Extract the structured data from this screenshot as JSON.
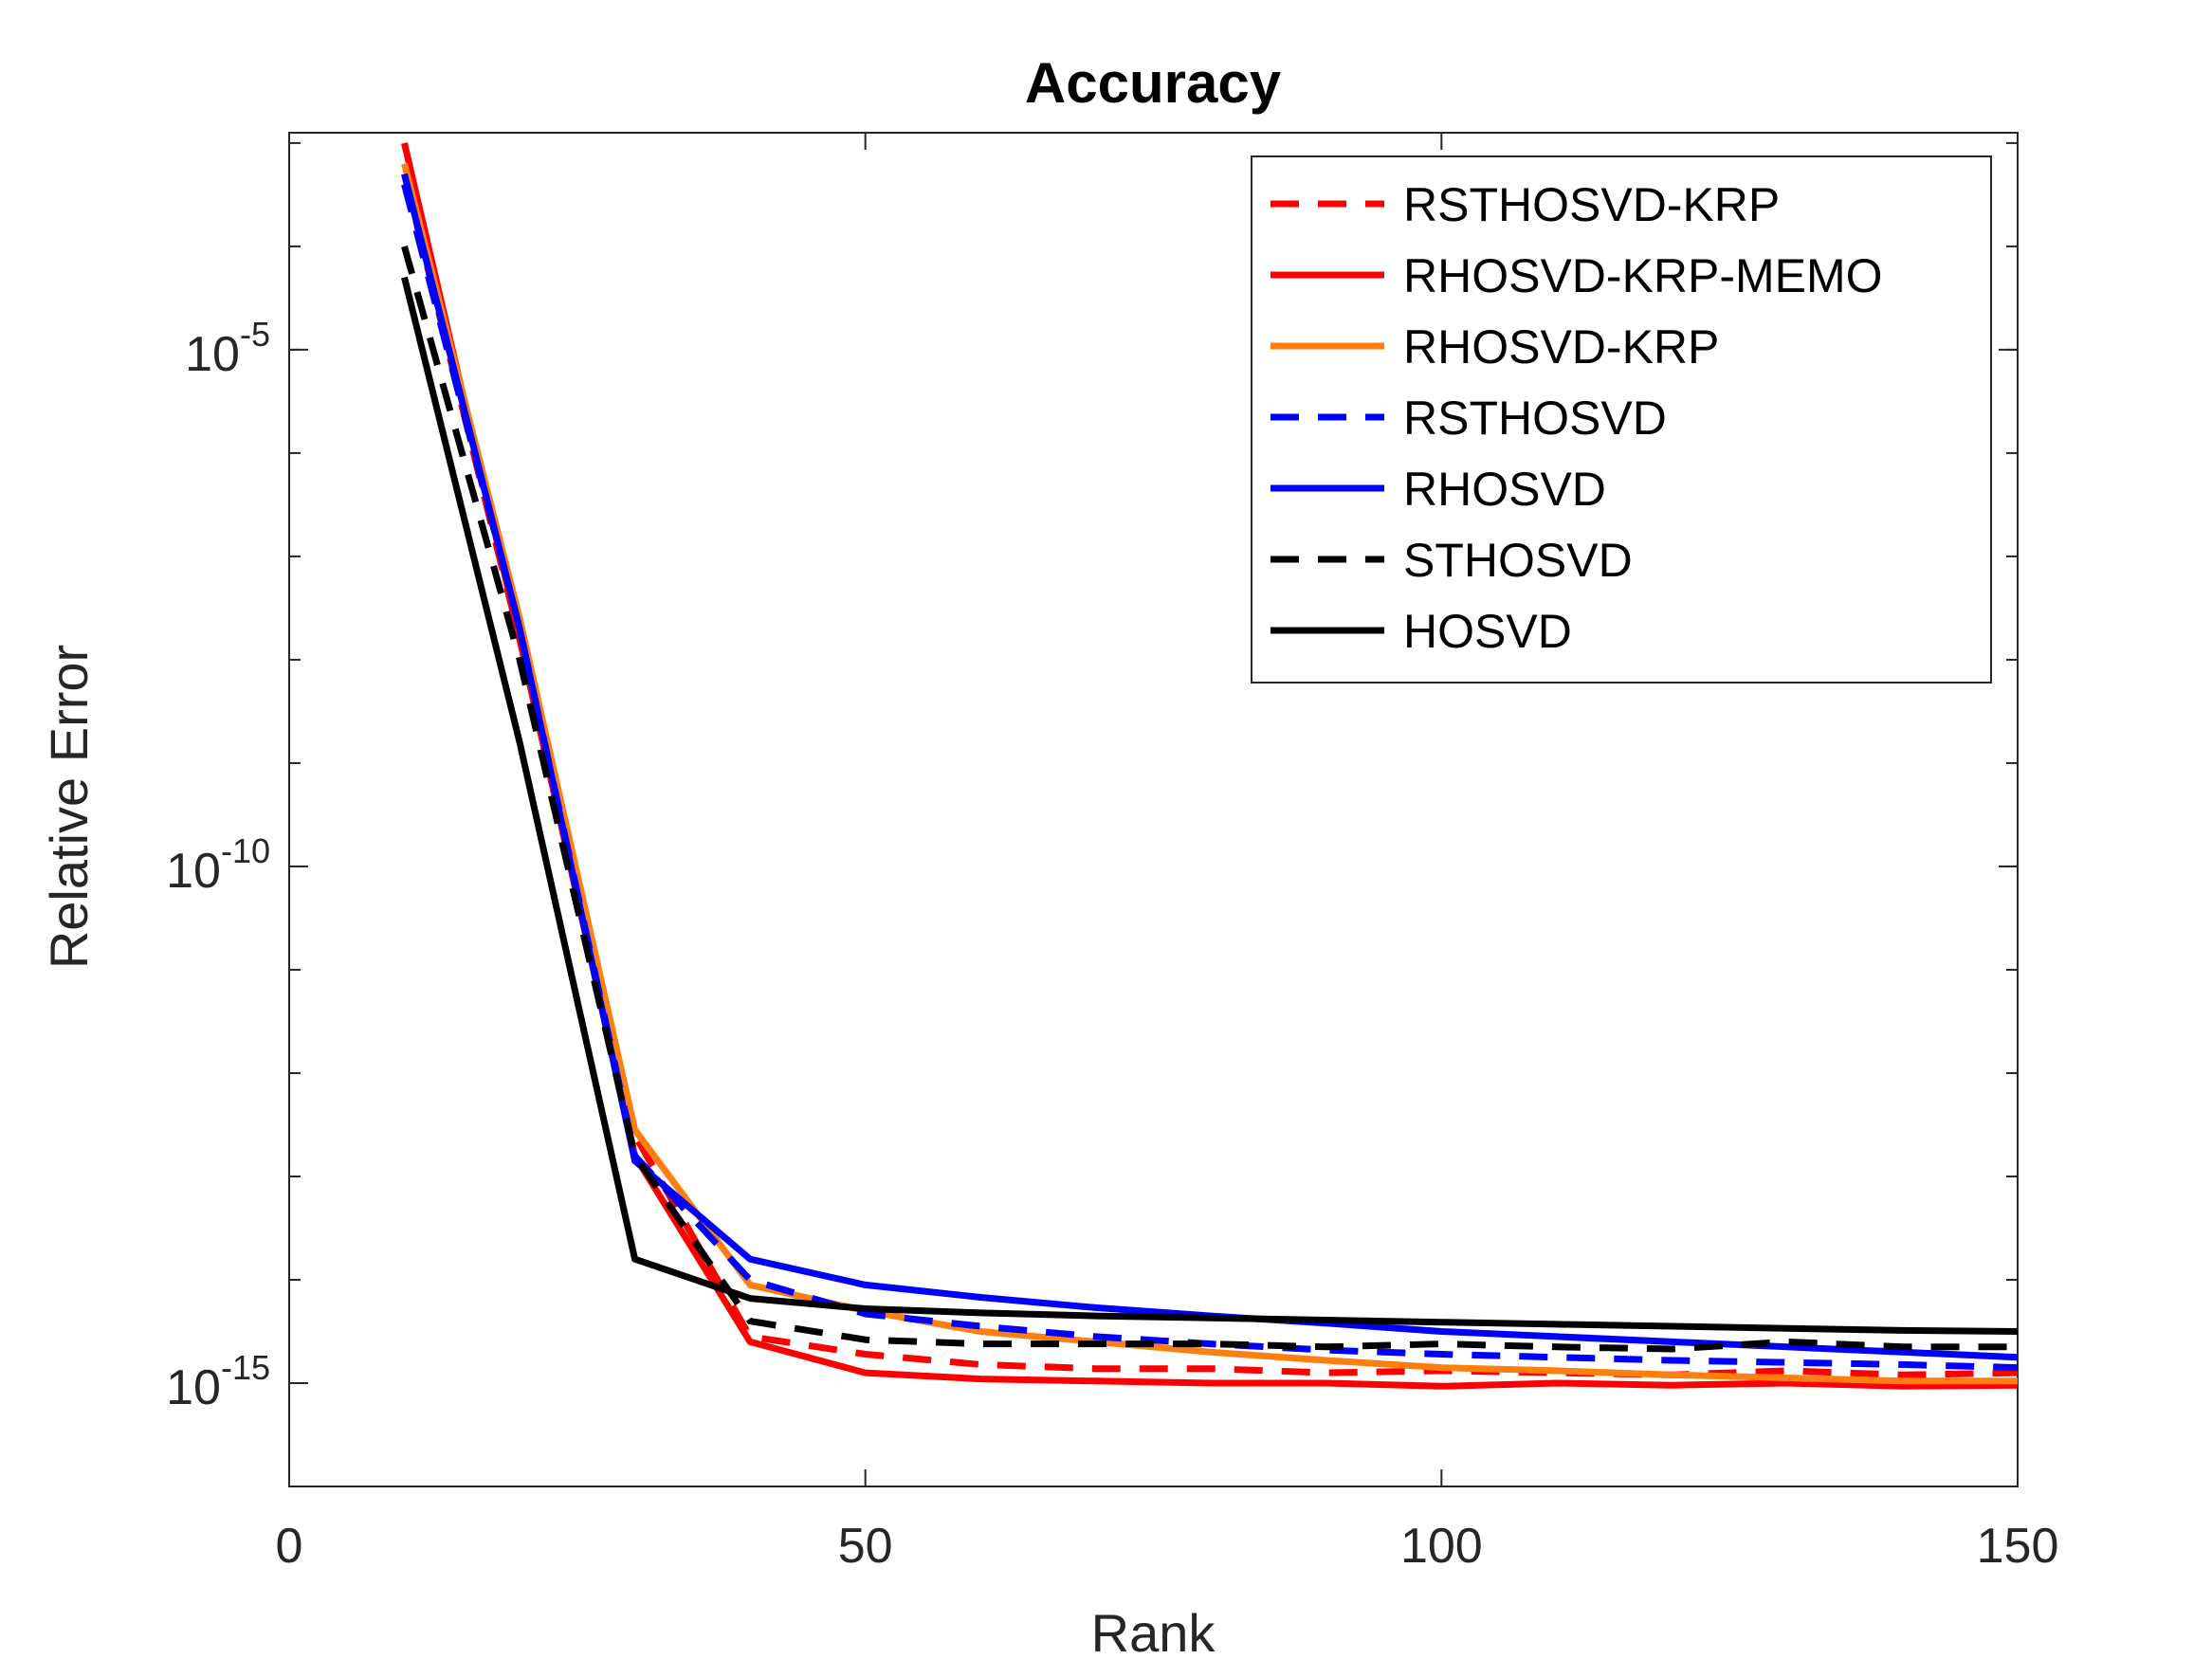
{
  "chart_data": {
    "type": "line",
    "title": "Accuracy",
    "xlabel": "Rank",
    "ylabel": "Relative Error",
    "xlim": [
      0,
      150
    ],
    "ylim_log10": [
      -16,
      -2.9
    ],
    "yscale": "log",
    "x_ticks": [
      0,
      50,
      100,
      150
    ],
    "y_ticks": [
      {
        "base": "10",
        "exp": "-5",
        "log10": -5
      },
      {
        "base": "10",
        "exp": "-10",
        "log10": -10
      },
      {
        "base": "10",
        "exp": "-15",
        "log10": -15
      }
    ],
    "grid": false,
    "legend_position": "top-right",
    "series": [
      {
        "name": "RSTHOSVD-KRP",
        "color": "#ff0000",
        "dash": "dashed",
        "x": [
          10,
          20,
          30,
          40,
          50,
          60,
          70,
          80,
          90,
          100,
          110,
          120,
          130,
          140,
          150
        ],
        "log10_y": [
          -3.3,
          -7.8,
          -12.6,
          -14.55,
          -14.72,
          -14.82,
          -14.86,
          -14.86,
          -14.9,
          -14.88,
          -14.9,
          -14.92,
          -14.88,
          -14.92,
          -14.9
        ]
      },
      {
        "name": "RHOSVD-KRP-MEMO",
        "color": "#ff0000",
        "dash": "solid",
        "x": [
          10,
          20,
          30,
          40,
          50,
          60,
          70,
          80,
          90,
          100,
          110,
          120,
          130,
          140,
          150
        ],
        "log10_y": [
          -3.0,
          -7.8,
          -12.8,
          -14.6,
          -14.9,
          -14.96,
          -14.98,
          -15.0,
          -15.0,
          -15.03,
          -15.0,
          -15.02,
          -15.0,
          -15.03,
          -15.02
        ]
      },
      {
        "name": "RHOSVD-KRP",
        "color": "#ff7f0e",
        "dash": "solid",
        "x": [
          10,
          20,
          30,
          40,
          50,
          60,
          70,
          80,
          90,
          100,
          110,
          120,
          130,
          140,
          150
        ],
        "log10_y": [
          -3.2,
          -7.6,
          -12.55,
          -14.05,
          -14.3,
          -14.5,
          -14.6,
          -14.7,
          -14.78,
          -14.85,
          -14.88,
          -14.92,
          -14.95,
          -14.98,
          -14.98
        ]
      },
      {
        "name": "RSTHOSVD",
        "color": "#0000ff",
        "dash": "dashed",
        "x": [
          10,
          20,
          30,
          40,
          50,
          60,
          70,
          80,
          90,
          100,
          110,
          120,
          130,
          140,
          150
        ],
        "log10_y": [
          -3.4,
          -7.7,
          -12.8,
          -14.0,
          -14.33,
          -14.45,
          -14.55,
          -14.62,
          -14.68,
          -14.72,
          -14.75,
          -14.78,
          -14.8,
          -14.82,
          -14.85
        ]
      },
      {
        "name": "RHOSVD",
        "color": "#0000ff",
        "dash": "solid",
        "x": [
          10,
          20,
          30,
          40,
          50,
          60,
          70,
          80,
          90,
          100,
          110,
          120,
          130,
          140,
          150
        ],
        "log10_y": [
          -3.3,
          -7.7,
          -12.85,
          -13.8,
          -14.05,
          -14.17,
          -14.27,
          -14.35,
          -14.42,
          -14.5,
          -14.55,
          -14.6,
          -14.65,
          -14.7,
          -14.75
        ]
      },
      {
        "name": "STHOSVD",
        "color": "#000000",
        "dash": "dashed",
        "x": [
          10,
          20,
          30,
          40,
          50,
          60,
          70,
          80,
          90,
          100,
          110,
          120,
          130,
          140,
          150
        ],
        "log10_y": [
          -4.0,
          -8.0,
          -12.8,
          -14.4,
          -14.58,
          -14.62,
          -14.62,
          -14.62,
          -14.65,
          -14.62,
          -14.65,
          -14.67,
          -14.6,
          -14.65,
          -14.65
        ]
      },
      {
        "name": "HOSVD",
        "color": "#000000",
        "dash": "solid",
        "x": [
          10,
          20,
          30,
          40,
          50,
          60,
          70,
          80,
          90,
          100,
          110,
          120,
          130,
          140,
          150
        ],
        "log10_y": [
          -4.3,
          -8.8,
          -13.8,
          -14.18,
          -14.28,
          -14.32,
          -14.35,
          -14.37,
          -14.39,
          -14.41,
          -14.43,
          -14.45,
          -14.47,
          -14.49,
          -14.5
        ]
      }
    ]
  }
}
